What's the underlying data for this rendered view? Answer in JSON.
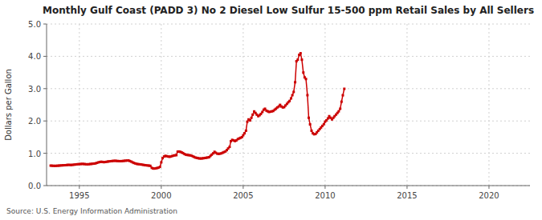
{
  "chart_data": {
    "type": "line",
    "title": "Monthly Gulf Coast (PADD 3) No 2 Diesel Low Sulfur 15-500 ppm Retail Sales by All Sellers",
    "y_label": "Dollars per Gallon",
    "source": "Source: U.S. Energy Information Administration",
    "color": "#cc0000",
    "marker": "square",
    "grid": true,
    "xlim": [
      1993.0,
      2022.5
    ],
    "ylim": [
      0.0,
      5.0
    ],
    "xticks": [
      1995,
      2000,
      2005,
      2010,
      2015,
      2020
    ],
    "yticks": [
      {
        "value": 0.0,
        "label": "0.0"
      },
      {
        "value": 1.0,
        "label": "1.0"
      },
      {
        "value": 2.0,
        "label": "2.0"
      },
      {
        "value": 3.0,
        "label": "3.0"
      },
      {
        "value": 4.0,
        "label": "4.0"
      },
      {
        "value": 5.0,
        "label": "5.0"
      }
    ],
    "x": [
      1993.25,
      1993.33,
      1993.42,
      1993.5,
      1993.58,
      1993.67,
      1993.75,
      1993.83,
      1993.92,
      1994.0,
      1994.08,
      1994.17,
      1994.25,
      1994.33,
      1994.42,
      1994.5,
      1994.58,
      1994.67,
      1994.75,
      1994.83,
      1994.92,
      1995.0,
      1995.08,
      1995.17,
      1995.25,
      1995.33,
      1995.42,
      1995.5,
      1995.58,
      1995.67,
      1995.75,
      1995.83,
      1995.92,
      1996.0,
      1996.08,
      1996.17,
      1996.25,
      1996.33,
      1996.42,
      1996.5,
      1996.58,
      1996.67,
      1996.75,
      1996.83,
      1996.92,
      1997.0,
      1997.08,
      1997.17,
      1997.25,
      1997.33,
      1997.42,
      1997.5,
      1997.58,
      1997.67,
      1997.75,
      1997.83,
      1997.92,
      1998.0,
      1998.08,
      1998.17,
      1998.25,
      1998.33,
      1998.42,
      1998.5,
      1998.58,
      1998.67,
      1998.75,
      1998.83,
      1998.92,
      1999.0,
      1999.08,
      1999.17,
      1999.25,
      1999.33,
      1999.42,
      1999.5,
      1999.58,
      1999.67,
      1999.75,
      1999.83,
      1999.92,
      2000.0,
      2000.08,
      2000.17,
      2000.25,
      2000.33,
      2000.42,
      2000.5,
      2000.58,
      2000.67,
      2000.75,
      2000.83,
      2000.92,
      2001.0,
      2001.08,
      2001.17,
      2001.25,
      2001.33,
      2001.42,
      2001.5,
      2001.58,
      2001.67,
      2001.75,
      2001.83,
      2001.92,
      2002.0,
      2002.08,
      2002.17,
      2002.25,
      2002.33,
      2002.42,
      2002.5,
      2002.58,
      2002.67,
      2002.75,
      2002.83,
      2002.92,
      2003.0,
      2003.08,
      2003.17,
      2003.25,
      2003.33,
      2003.42,
      2003.5,
      2003.58,
      2003.67,
      2003.75,
      2003.83,
      2003.92,
      2004.0,
      2004.08,
      2004.17,
      2004.25,
      2004.33,
      2004.42,
      2004.5,
      2004.58,
      2004.67,
      2004.75,
      2004.83,
      2004.92,
      2005.0,
      2005.08,
      2005.17,
      2005.25,
      2005.33,
      2005.42,
      2005.5,
      2005.58,
      2005.67,
      2005.75,
      2005.83,
      2005.92,
      2006.0,
      2006.08,
      2006.17,
      2006.25,
      2006.33,
      2006.42,
      2006.5,
      2006.58,
      2006.67,
      2006.75,
      2006.83,
      2006.92,
      2007.0,
      2007.08,
      2007.17,
      2007.25,
      2007.33,
      2007.42,
      2007.5,
      2007.58,
      2007.67,
      2007.75,
      2007.83,
      2007.92,
      2008.0,
      2008.08,
      2008.17,
      2008.25,
      2008.33,
      2008.42,
      2008.5,
      2008.58,
      2008.67,
      2008.75,
      2008.83,
      2008.92,
      2009.0,
      2009.08,
      2009.17,
      2009.25,
      2009.33,
      2009.42,
      2009.5,
      2009.58,
      2009.67,
      2009.75,
      2009.83,
      2009.92,
      2010.0,
      2010.08,
      2010.17,
      2010.25,
      2010.33,
      2010.42,
      2010.5,
      2010.58,
      2010.67,
      2010.75,
      2010.83,
      2010.92,
      2011.0,
      2011.08,
      2011.17
    ],
    "values": [
      0.618,
      0.615,
      0.612,
      0.61,
      0.612,
      0.615,
      0.618,
      0.622,
      0.625,
      0.628,
      0.63,
      0.632,
      0.638,
      0.642,
      0.64,
      0.638,
      0.642,
      0.648,
      0.652,
      0.658,
      0.662,
      0.665,
      0.668,
      0.672,
      0.67,
      0.665,
      0.66,
      0.658,
      0.662,
      0.668,
      0.672,
      0.678,
      0.682,
      0.69,
      0.705,
      0.72,
      0.73,
      0.738,
      0.732,
      0.725,
      0.73,
      0.738,
      0.745,
      0.75,
      0.755,
      0.76,
      0.765,
      0.768,
      0.765,
      0.76,
      0.758,
      0.755,
      0.758,
      0.762,
      0.768,
      0.772,
      0.775,
      0.778,
      0.76,
      0.742,
      0.72,
      0.7,
      0.685,
      0.672,
      0.665,
      0.66,
      0.655,
      0.648,
      0.64,
      0.632,
      0.628,
      0.622,
      0.618,
      0.612,
      0.55,
      0.53,
      0.528,
      0.535,
      0.545,
      0.555,
      0.58,
      0.72,
      0.85,
      0.9,
      0.92,
      0.91,
      0.9,
      0.892,
      0.9,
      0.915,
      0.928,
      0.938,
      0.942,
      1.05,
      1.055,
      1.045,
      1.025,
      1.005,
      0.975,
      0.958,
      0.948,
      0.942,
      0.938,
      0.928,
      0.908,
      0.888,
      0.868,
      0.858,
      0.848,
      0.84,
      0.838,
      0.842,
      0.848,
      0.855,
      0.862,
      0.87,
      0.878,
      0.918,
      0.958,
      0.998,
      1.045,
      1.015,
      0.988,
      0.982,
      0.988,
      0.998,
      1.018,
      1.038,
      1.058,
      1.098,
      1.148,
      1.198,
      1.375,
      1.415,
      1.398,
      1.378,
      1.398,
      1.438,
      1.458,
      1.478,
      1.498,
      1.558,
      1.618,
      1.698,
      1.978,
      2.048,
      2.018,
      2.098,
      2.195,
      2.295,
      2.248,
      2.195,
      2.148,
      2.178,
      2.218,
      2.278,
      2.348,
      2.378,
      2.318,
      2.298,
      2.278,
      2.288,
      2.298,
      2.308,
      2.348,
      2.378,
      2.418,
      2.448,
      2.498,
      2.448,
      2.418,
      2.428,
      2.478,
      2.528,
      2.578,
      2.618,
      2.698,
      2.798,
      2.898,
      3.198,
      3.848,
      3.895,
      4.048,
      4.095,
      3.895,
      3.498,
      3.348,
      3.298,
      2.798,
      2.098,
      1.895,
      1.698,
      1.618,
      1.588,
      1.598,
      1.648,
      1.698,
      1.748,
      1.798,
      1.848,
      1.898,
      1.978,
      2.018,
      2.078,
      2.148,
      2.098,
      2.048,
      2.098,
      2.148,
      2.198,
      2.248,
      2.298,
      2.378,
      2.595,
      2.795,
      2.995
    ]
  }
}
